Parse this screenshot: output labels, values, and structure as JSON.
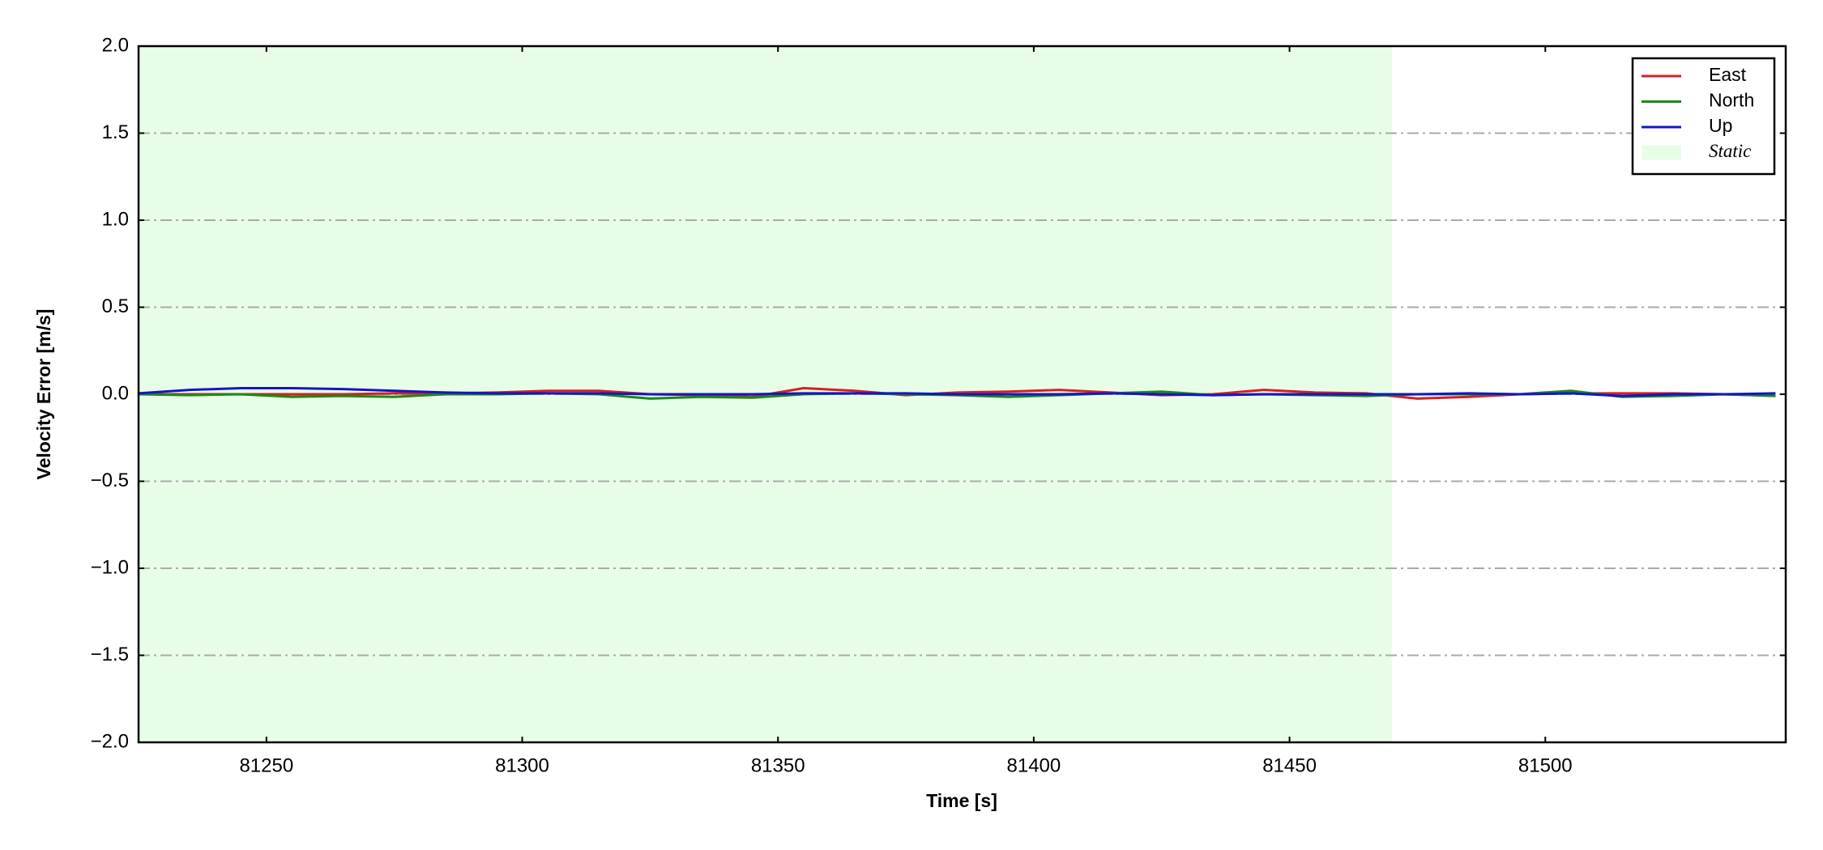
{
  "chart_data": {
    "type": "line",
    "x_label": "Time [s]",
    "y_label": "Velocity Error [m/s]",
    "x": [
      81225,
      81235,
      81245,
      81255,
      81265,
      81275,
      81285,
      81295,
      81305,
      81315,
      81325,
      81335,
      81345,
      81355,
      81365,
      81375,
      81385,
      81395,
      81405,
      81415,
      81425,
      81435,
      81445,
      81455,
      81465,
      81475,
      81485,
      81495,
      81505,
      81515,
      81525,
      81535,
      81545
    ],
    "series": [
      {
        "name": "East",
        "color": "#d62020",
        "values": [
          0,
          0,
          0,
          0,
          0,
          0.005,
          0.005,
          0.01,
          0.02,
          0.02,
          0,
          -0.005,
          -0.015,
          0.035,
          0.02,
          -0.005,
          0.01,
          0.015,
          0.025,
          0.01,
          -0.005,
          0,
          0.025,
          0.01,
          0.005,
          -0.025,
          -0.015,
          0,
          0.005,
          0.005,
          0.005,
          0,
          -0.01
        ]
      },
      {
        "name": "North",
        "color": "#1a8a1a",
        "values": [
          0,
          -0.005,
          0,
          -0.015,
          -0.01,
          -0.015,
          0,
          0,
          0.005,
          0,
          -0.025,
          -0.015,
          -0.02,
          0,
          0.005,
          0,
          -0.005,
          -0.015,
          -0.005,
          0.005,
          0.015,
          -0.005,
          0,
          -0.005,
          -0.01,
          0,
          0,
          0,
          0.02,
          -0.015,
          -0.01,
          0,
          -0.01
        ]
      },
      {
        "name": "Up",
        "color": "#1515c8",
        "values": [
          0.005,
          0.025,
          0.035,
          0.035,
          0.03,
          0.02,
          0.01,
          0.005,
          0.005,
          0.005,
          0,
          0,
          0,
          0.005,
          0.005,
          0.005,
          0,
          0,
          0,
          0.005,
          0,
          -0.005,
          0,
          0,
          0,
          0,
          0.005,
          0,
          0.005,
          -0.01,
          0,
          0,
          0.005
        ]
      }
    ],
    "span": {
      "name": "Static",
      "color": "#e8fde8",
      "range": [
        81225,
        81470
      ]
    },
    "xlim": [
      81225,
      81547
    ],
    "xticks": [
      81250,
      81300,
      81350,
      81400,
      81450,
      81500
    ],
    "ylim": [
      -2,
      2
    ],
    "yticks": [
      {
        "value": -2,
        "label": "−2.0"
      },
      {
        "value": -1.5,
        "label": "−1.5"
      },
      {
        "value": -1,
        "label": "−1.0"
      },
      {
        "value": -0.5,
        "label": "−0.5"
      },
      {
        "value": 0,
        "label": "0.0"
      },
      0.5,
      {
        "value": 1,
        "label": "1.0"
      },
      1.5,
      {
        "value": 2,
        "label": "2.0"
      }
    ],
    "grid": true,
    "legend": "upper right"
  }
}
